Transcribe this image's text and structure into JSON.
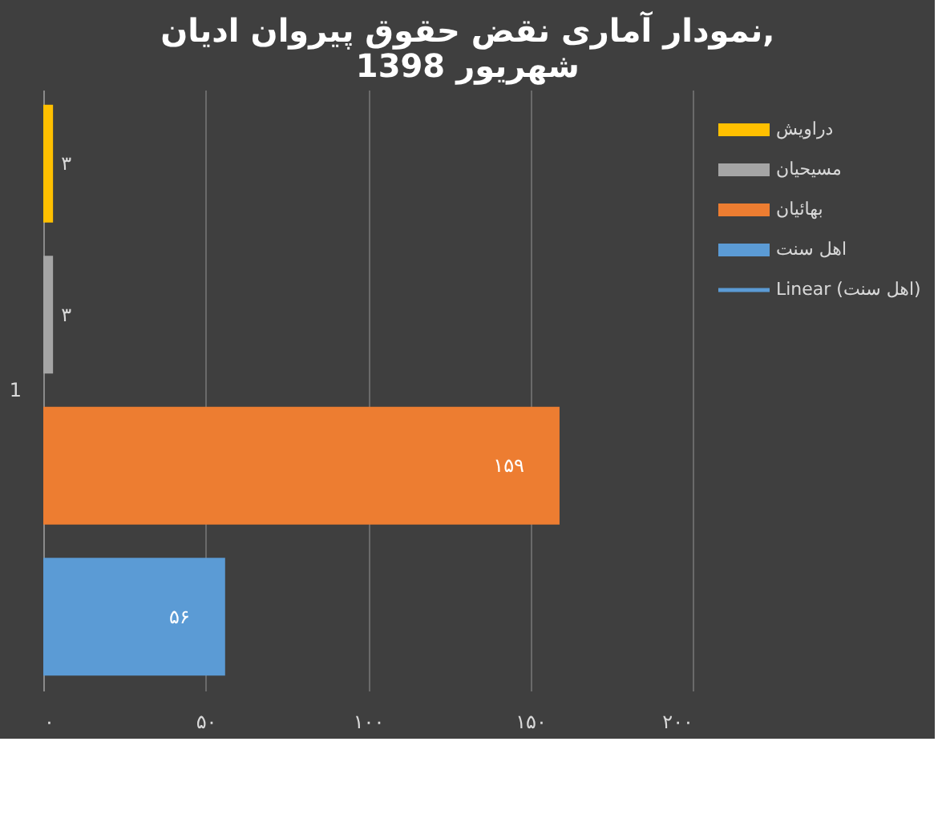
{
  "chart_data": {
    "type": "bar",
    "orientation": "horizontal",
    "title": [
      "نمودار آماری نقض حقوق پیروان ادیان,",
      "شهریور 1398"
    ],
    "categories": [
      "1"
    ],
    "series": [
      {
        "name": "دراویش",
        "color": "#ffc000",
        "values": [
          3
        ],
        "value_labels": [
          "۳"
        ]
      },
      {
        "name": "مسیحیان",
        "color": "#a5a5a5",
        "values": [
          3
        ],
        "value_labels": [
          "۳"
        ]
      },
      {
        "name": "بهائیان",
        "color": "#ed7d31",
        "values": [
          159
        ],
        "value_labels": [
          "۱۵۹"
        ]
      },
      {
        "name": "اهل سنت",
        "color": "#5b9bd5",
        "values": [
          56
        ],
        "value_labels": [
          "۵۶"
        ]
      },
      {
        "name": "Linear (اهل سنت)",
        "type": "line",
        "color": "#5b9bd5",
        "values": [
          null
        ]
      }
    ],
    "xlim": [
      0,
      200
    ],
    "xticks": [
      {
        "value": 0,
        "label": "۰"
      },
      {
        "value": 50,
        "label": "۵۰"
      },
      {
        "value": 100,
        "label": "۱۰۰"
      },
      {
        "value": 150,
        "label": "۱۵۰"
      },
      {
        "value": 200,
        "label": "۲۰۰"
      }
    ],
    "grid": "x",
    "legend": "right"
  }
}
